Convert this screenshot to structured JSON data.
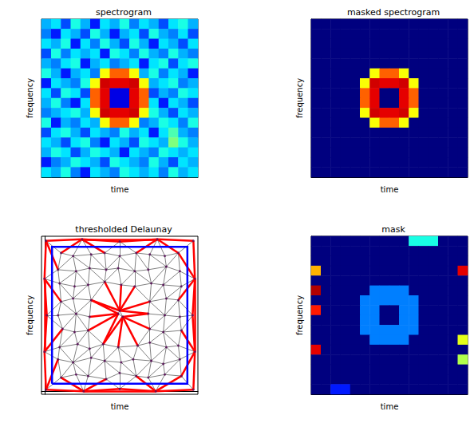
{
  "chart_data": [
    {
      "type": "heatmap",
      "title": "spectrogram",
      "xlabel": "time",
      "ylabel": "frequency",
      "tick_labels": false,
      "color_range": [
        0,
        1
      ],
      "cells": [
        [
          0.3,
          0.35,
          0.2,
          0.4,
          0.3,
          0.15,
          0.35,
          0.3,
          0.4,
          0.25,
          0.35,
          0.3,
          0.2,
          0.35,
          0.4,
          0.3
        ],
        [
          0.25,
          0.15,
          0.35,
          0.3,
          0.2,
          0.4,
          0.3,
          0.15,
          0.3,
          0.35,
          0.2,
          0.4,
          0.3,
          0.25,
          0.35,
          0.2
        ],
        [
          0.35,
          0.3,
          0.4,
          0.15,
          0.35,
          0.25,
          0.4,
          0.3,
          0.2,
          0.4,
          0.3,
          0.15,
          0.35,
          0.3,
          0.2,
          0.35
        ],
        [
          0.2,
          0.4,
          0.25,
          0.35,
          0.3,
          0.35,
          0.15,
          0.4,
          0.35,
          0.25,
          0.4,
          0.3,
          0.25,
          0.4,
          0.3,
          0.25
        ],
        [
          0.3,
          0.25,
          0.35,
          0.4,
          0.15,
          0.3,
          0.35,
          0.25,
          0.3,
          0.35,
          0.15,
          0.35,
          0.4,
          0.2,
          0.35,
          0.4
        ],
        [
          0.4,
          0.3,
          0.15,
          0.3,
          0.35,
          0.25,
          0.62,
          0.78,
          0.78,
          0.62,
          0.3,
          0.4,
          0.25,
          0.35,
          0.3,
          0.15
        ],
        [
          0.15,
          0.35,
          0.3,
          0.25,
          0.4,
          0.62,
          0.92,
          0.9,
          0.9,
          0.92,
          0.62,
          0.3,
          0.35,
          0.4,
          0.25,
          0.3
        ],
        [
          0.35,
          0.2,
          0.4,
          0.35,
          0.2,
          0.78,
          0.9,
          0.1,
          0.1,
          0.9,
          0.78,
          0.2,
          0.3,
          0.25,
          0.4,
          0.35
        ],
        [
          0.3,
          0.4,
          0.25,
          0.15,
          0.35,
          0.78,
          0.9,
          0.1,
          0.1,
          0.9,
          0.78,
          0.35,
          0.15,
          0.35,
          0.3,
          0.2
        ],
        [
          0.25,
          0.3,
          0.35,
          0.4,
          0.3,
          0.62,
          0.92,
          0.9,
          0.9,
          0.92,
          0.62,
          0.4,
          0.3,
          0.2,
          0.35,
          0.3
        ],
        [
          0.4,
          0.15,
          0.3,
          0.25,
          0.35,
          0.3,
          0.62,
          0.78,
          0.78,
          0.62,
          0.25,
          0.3,
          0.4,
          0.35,
          0.25,
          0.4
        ],
        [
          0.2,
          0.35,
          0.4,
          0.3,
          0.2,
          0.35,
          0.3,
          0.25,
          0.4,
          0.3,
          0.35,
          0.15,
          0.35,
          0.45,
          0.3,
          0.25
        ],
        [
          0.35,
          0.3,
          0.2,
          0.35,
          0.4,
          0.25,
          0.15,
          0.35,
          0.3,
          0.2,
          0.4,
          0.35,
          0.3,
          0.5,
          0.4,
          0.3
        ],
        [
          0.3,
          0.4,
          0.35,
          0.2,
          0.3,
          0.4,
          0.35,
          0.3,
          0.15,
          0.35,
          0.3,
          0.25,
          0.4,
          0.35,
          0.3,
          0.35
        ],
        [
          0.15,
          0.25,
          0.3,
          0.4,
          0.35,
          0.3,
          0.2,
          0.4,
          0.35,
          0.3,
          0.25,
          0.4,
          0.3,
          0.2,
          0.35,
          0.3
        ],
        [
          0.35,
          0.3,
          0.4,
          0.25,
          0.15,
          0.35,
          0.3,
          0.25,
          0.4,
          0.35,
          0.3,
          0.35,
          0.25,
          0.4,
          0.3,
          0.35
        ]
      ]
    },
    {
      "type": "heatmap",
      "title": "masked spectrogram",
      "xlabel": "time",
      "ylabel": "frequency",
      "tick_labels": false,
      "color_range": [
        0,
        1
      ],
      "cells": [
        [
          0,
          0,
          0,
          0,
          0,
          0,
          0,
          0,
          0,
          0,
          0,
          0,
          0,
          0,
          0,
          0
        ],
        [
          0,
          0,
          0,
          0,
          0,
          0,
          0,
          0,
          0,
          0,
          0,
          0,
          0,
          0,
          0,
          0
        ],
        [
          0,
          0,
          0,
          0,
          0,
          0,
          0,
          0,
          0,
          0,
          0,
          0,
          0,
          0,
          0,
          0
        ],
        [
          0,
          0,
          0,
          0,
          0,
          0,
          0,
          0,
          0,
          0,
          0,
          0,
          0,
          0,
          0,
          0
        ],
        [
          0,
          0,
          0,
          0,
          0,
          0,
          0,
          0,
          0,
          0,
          0,
          0,
          0,
          0,
          0,
          0
        ],
        [
          0,
          0,
          0,
          0,
          0,
          0,
          0.62,
          0.78,
          0.78,
          0.62,
          0,
          0,
          0,
          0,
          0,
          0
        ],
        [
          0,
          0,
          0,
          0,
          0,
          0.62,
          0.92,
          0.9,
          0.9,
          0.92,
          0.62,
          0,
          0,
          0,
          0,
          0
        ],
        [
          0,
          0,
          0,
          0,
          0,
          0.78,
          0.9,
          0,
          0,
          0.9,
          0.78,
          0,
          0,
          0,
          0,
          0
        ],
        [
          0,
          0,
          0,
          0,
          0,
          0.78,
          0.9,
          0,
          0,
          0.9,
          0.78,
          0,
          0,
          0,
          0,
          0
        ],
        [
          0,
          0,
          0,
          0,
          0,
          0.62,
          0.92,
          0.9,
          0.9,
          0.92,
          0.62,
          0,
          0,
          0,
          0,
          0
        ],
        [
          0,
          0,
          0,
          0,
          0,
          0,
          0.62,
          0.78,
          0.78,
          0.62,
          0,
          0,
          0,
          0,
          0,
          0
        ],
        [
          0,
          0,
          0,
          0,
          0,
          0,
          0,
          0,
          0,
          0,
          0,
          0,
          0,
          0,
          0,
          0
        ],
        [
          0,
          0,
          0,
          0,
          0,
          0,
          0,
          0,
          0,
          0,
          0,
          0,
          0,
          0,
          0,
          0
        ],
        [
          0,
          0,
          0,
          0,
          0,
          0,
          0,
          0,
          0,
          0,
          0,
          0,
          0,
          0,
          0,
          0
        ],
        [
          0,
          0,
          0,
          0,
          0,
          0,
          0,
          0,
          0,
          0,
          0,
          0,
          0,
          0,
          0,
          0
        ],
        [
          0,
          0,
          0,
          0,
          0,
          0,
          0,
          0,
          0,
          0,
          0,
          0,
          0,
          0,
          0,
          0
        ]
      ]
    },
    {
      "type": "delaunay",
      "title": "thresholded Delaunay",
      "xlabel": "time",
      "ylabel": "frequency",
      "tick_labels": false,
      "xlim": [
        -0.02,
        1.02
      ],
      "ylim": [
        -0.02,
        1.02
      ],
      "threshold": 0.16,
      "box": {
        "x": [
          0.05,
          0.95
        ],
        "y": [
          0.05,
          0.95
        ]
      },
      "points": [
        [
          0.11,
          0.09
        ],
        [
          0.21,
          0.11
        ],
        [
          0.29,
          0.1
        ],
        [
          0.41,
          0.08
        ],
        [
          0.5,
          0.12
        ],
        [
          0.61,
          0.1
        ],
        [
          0.69,
          0.09
        ],
        [
          0.8,
          0.11
        ],
        [
          0.91,
          0.1
        ],
        [
          0.09,
          0.21
        ],
        [
          0.19,
          0.19
        ],
        [
          0.31,
          0.22
        ],
        [
          0.4,
          0.2
        ],
        [
          0.51,
          0.19
        ],
        [
          0.59,
          0.21
        ],
        [
          0.71,
          0.2
        ],
        [
          0.79,
          0.18
        ],
        [
          0.9,
          0.21
        ],
        [
          0.1,
          0.29
        ],
        [
          0.22,
          0.31
        ],
        [
          0.3,
          0.28
        ],
        [
          0.39,
          0.31
        ],
        [
          0.49,
          0.29
        ],
        [
          0.62,
          0.3
        ],
        [
          0.7,
          0.32
        ],
        [
          0.81,
          0.29
        ],
        [
          0.89,
          0.3
        ],
        [
          0.12,
          0.41
        ],
        [
          0.2,
          0.39
        ],
        [
          0.29,
          0.4
        ],
        [
          0.7,
          0.41
        ],
        [
          0.79,
          0.39
        ],
        [
          0.91,
          0.4
        ],
        [
          0.09,
          0.5
        ],
        [
          0.21,
          0.51
        ],
        [
          0.3,
          0.49
        ],
        [
          0.69,
          0.51
        ],
        [
          0.8,
          0.5
        ],
        [
          0.9,
          0.49
        ],
        [
          0.11,
          0.59
        ],
        [
          0.19,
          0.61
        ],
        [
          0.31,
          0.6
        ],
        [
          0.7,
          0.59
        ],
        [
          0.81,
          0.61
        ],
        [
          0.89,
          0.6
        ],
        [
          0.1,
          0.71
        ],
        [
          0.2,
          0.69
        ],
        [
          0.29,
          0.7
        ],
        [
          0.4,
          0.72
        ],
        [
          0.51,
          0.7
        ],
        [
          0.6,
          0.69
        ],
        [
          0.71,
          0.71
        ],
        [
          0.79,
          0.7
        ],
        [
          0.91,
          0.69
        ],
        [
          0.09,
          0.8
        ],
        [
          0.21,
          0.79
        ],
        [
          0.3,
          0.81
        ],
        [
          0.41,
          0.8
        ],
        [
          0.49,
          0.81
        ],
        [
          0.6,
          0.79
        ],
        [
          0.69,
          0.8
        ],
        [
          0.81,
          0.82
        ],
        [
          0.9,
          0.79
        ],
        [
          0.11,
          0.91
        ],
        [
          0.19,
          0.89
        ],
        [
          0.31,
          0.9
        ],
        [
          0.4,
          0.91
        ],
        [
          0.5,
          0.89
        ],
        [
          0.61,
          0.91
        ],
        [
          0.7,
          0.9
        ],
        [
          0.8,
          0.89
        ],
        [
          0.89,
          0.91
        ],
        [
          0.49,
          0.51
        ],
        [
          0.52,
          0.49
        ],
        [
          0.5,
          0.53
        ],
        [
          0.01,
          0.01
        ],
        [
          0.26,
          0.0
        ],
        [
          0.5,
          0.015
        ],
        [
          0.74,
          0.0
        ],
        [
          0.99,
          0.01
        ],
        [
          1.0,
          0.26
        ],
        [
          0.985,
          0.5
        ],
        [
          1.0,
          0.74
        ],
        [
          0.99,
          0.99
        ],
        [
          0.75,
          1.0
        ],
        [
          0.5,
          0.985
        ],
        [
          0.25,
          1.0
        ],
        [
          0.01,
          0.99
        ],
        [
          0.0,
          0.74
        ],
        [
          0.015,
          0.5
        ],
        [
          0.0,
          0.26
        ]
      ]
    },
    {
      "type": "heatmap",
      "title": "mask",
      "xlabel": "time",
      "ylabel": "frequency",
      "tick_labels": false,
      "color_range": [
        0,
        1
      ],
      "cells": [
        [
          0,
          0,
          0,
          0,
          0,
          0,
          0,
          0,
          0,
          0,
          0.4,
          0.4,
          0.4,
          0,
          0,
          0
        ],
        [
          0,
          0,
          0,
          0,
          0,
          0,
          0,
          0,
          0,
          0,
          0,
          0,
          0,
          0,
          0,
          0
        ],
        [
          0,
          0,
          0,
          0,
          0,
          0,
          0,
          0,
          0,
          0,
          0,
          0,
          0,
          0,
          0,
          0
        ],
        [
          0.7,
          0,
          0,
          0,
          0,
          0,
          0,
          0,
          0,
          0,
          0,
          0,
          0,
          0,
          0,
          0.9
        ],
        [
          0,
          0,
          0,
          0,
          0,
          0,
          0,
          0,
          0,
          0,
          0,
          0,
          0,
          0,
          0,
          0
        ],
        [
          0.95,
          0,
          0,
          0,
          0,
          0,
          0.25,
          0.25,
          0.25,
          0.25,
          0,
          0,
          0,
          0,
          0,
          0
        ],
        [
          0,
          0,
          0,
          0,
          0,
          0.25,
          0.25,
          0.25,
          0.25,
          0.25,
          0.25,
          0,
          0,
          0,
          0,
          0
        ],
        [
          0.85,
          0,
          0,
          0,
          0,
          0.25,
          0.25,
          0,
          0,
          0.25,
          0.25,
          0,
          0,
          0,
          0,
          0
        ],
        [
          0,
          0,
          0,
          0,
          0,
          0.25,
          0.25,
          0,
          0,
          0.25,
          0.25,
          0,
          0,
          0,
          0,
          0
        ],
        [
          0,
          0,
          0,
          0,
          0,
          0.25,
          0.25,
          0.25,
          0.25,
          0.25,
          0.25,
          0,
          0,
          0,
          0,
          0
        ],
        [
          0,
          0,
          0,
          0,
          0,
          0,
          0.25,
          0.25,
          0.25,
          0.25,
          0,
          0,
          0,
          0,
          0,
          0.6
        ],
        [
          0.9,
          0,
          0,
          0,
          0,
          0,
          0,
          0,
          0,
          0,
          0,
          0,
          0,
          0,
          0,
          0
        ],
        [
          0,
          0,
          0,
          0,
          0,
          0,
          0,
          0,
          0,
          0,
          0,
          0,
          0,
          0,
          0,
          0.55
        ],
        [
          0,
          0,
          0,
          0,
          0,
          0,
          0,
          0,
          0,
          0,
          0,
          0,
          0,
          0,
          0,
          0
        ],
        [
          0,
          0,
          0,
          0,
          0,
          0,
          0,
          0,
          0,
          0,
          0,
          0,
          0,
          0,
          0,
          0
        ],
        [
          0,
          0,
          0.15,
          0.15,
          0,
          0,
          0,
          0,
          0,
          0,
          0,
          0,
          0,
          0,
          0,
          0
        ]
      ]
    }
  ]
}
